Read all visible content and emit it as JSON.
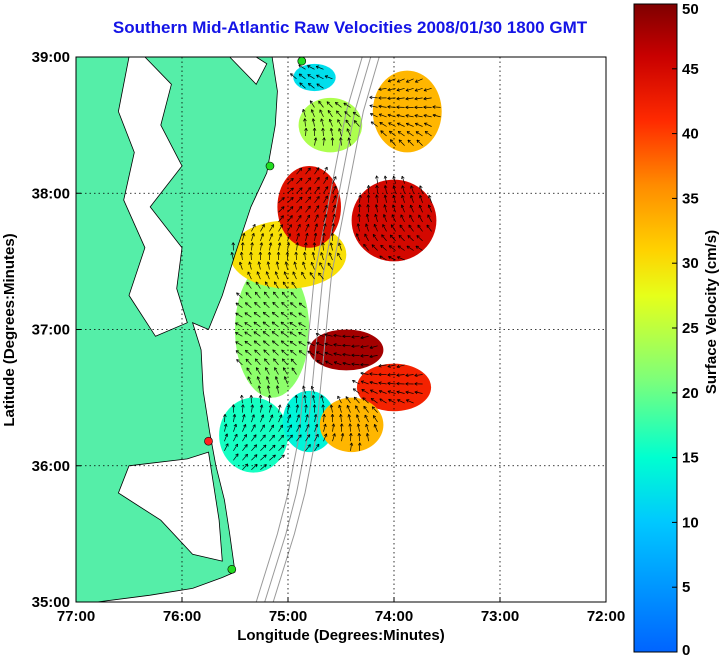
{
  "chart_data": {
    "type": "heatmap",
    "title": "Southern Mid-Atlantic Raw Velocities 2008/01/30 1800 GMT",
    "xlabel": "Longitude (Degrees:Minutes)",
    "ylabel": "Latitude (Degrees:Minutes)",
    "xlim": [
      -77,
      -72
    ],
    "ylim": [
      35,
      39
    ],
    "x_ticks": [
      -77,
      -76,
      -75,
      -74,
      -73,
      -72
    ],
    "x_tick_labels": [
      "77:00",
      "76:00",
      "75:00",
      "74:00",
      "73:00",
      "72:00"
    ],
    "y_ticks": [
      35,
      36,
      37,
      38,
      39
    ],
    "y_tick_labels": [
      "35:00",
      "36:00",
      "37:00",
      "38:00",
      "39:00"
    ],
    "grid": true,
    "colorbar": {
      "label": "Surface Velocity (cm/s)",
      "min": 0,
      "max": 50,
      "ticks": [
        0,
        5,
        10,
        15,
        20,
        25,
        30,
        35,
        40,
        45,
        50
      ],
      "tick_labels": [
        "0",
        "5",
        "10",
        "15",
        "20",
        "25",
        "30",
        "35",
        "40",
        "45",
        "50"
      ],
      "colormap": "jet"
    },
    "field_regions": [
      {
        "lon_min": -75.65,
        "lon_max": -75.0,
        "lat_min": 35.95,
        "lat_max": 36.5,
        "speed": 16
      },
      {
        "lon_min": -75.05,
        "lon_max": -74.55,
        "lat_min": 36.1,
        "lat_max": 36.55,
        "speed": 14
      },
      {
        "lon_min": -75.5,
        "lon_max": -74.8,
        "lat_min": 36.5,
        "lat_max": 37.5,
        "speed": 22
      },
      {
        "lon_min": -75.55,
        "lon_max": -74.45,
        "lat_min": 37.3,
        "lat_max": 37.8,
        "speed": 30
      },
      {
        "lon_min": -75.1,
        "lon_max": -74.5,
        "lat_min": 37.6,
        "lat_max": 38.2,
        "speed": 44
      },
      {
        "lon_min": -74.4,
        "lon_max": -73.6,
        "lat_min": 37.5,
        "lat_max": 38.1,
        "speed": 45
      },
      {
        "lon_min": -74.8,
        "lon_max": -74.1,
        "lat_min": 36.7,
        "lat_max": 37.0,
        "speed": 48
      },
      {
        "lon_min": -74.35,
        "lon_max": -73.65,
        "lat_min": 36.4,
        "lat_max": 36.75,
        "speed": 42
      },
      {
        "lon_min": -74.7,
        "lon_max": -74.1,
        "lat_min": 36.1,
        "lat_max": 36.5,
        "speed": 33
      },
      {
        "lon_min": -74.2,
        "lon_max": -73.55,
        "lat_min": 38.3,
        "lat_max": 38.9,
        "speed": 33
      },
      {
        "lon_min": -74.9,
        "lon_max": -74.3,
        "lat_min": 38.3,
        "lat_max": 38.7,
        "speed": 24
      },
      {
        "lon_min": -74.95,
        "lon_max": -74.55,
        "lat_min": 38.75,
        "lat_max": 38.95,
        "speed": 12
      }
    ],
    "site_markers": [
      {
        "lon": -74.87,
        "lat": 38.97,
        "color": "#22dd22"
      },
      {
        "lon": -75.17,
        "lat": 38.2,
        "color": "#22dd22"
      },
      {
        "lon": -75.75,
        "lat": 36.18,
        "color": "#ff2020"
      },
      {
        "lon": -75.53,
        "lat": 35.24,
        "color": "#22dd22"
      }
    ]
  },
  "colors": {
    "land": "#55eea8",
    "title": "#1414e6",
    "background": "#ffffff",
    "vector": "#000000"
  }
}
